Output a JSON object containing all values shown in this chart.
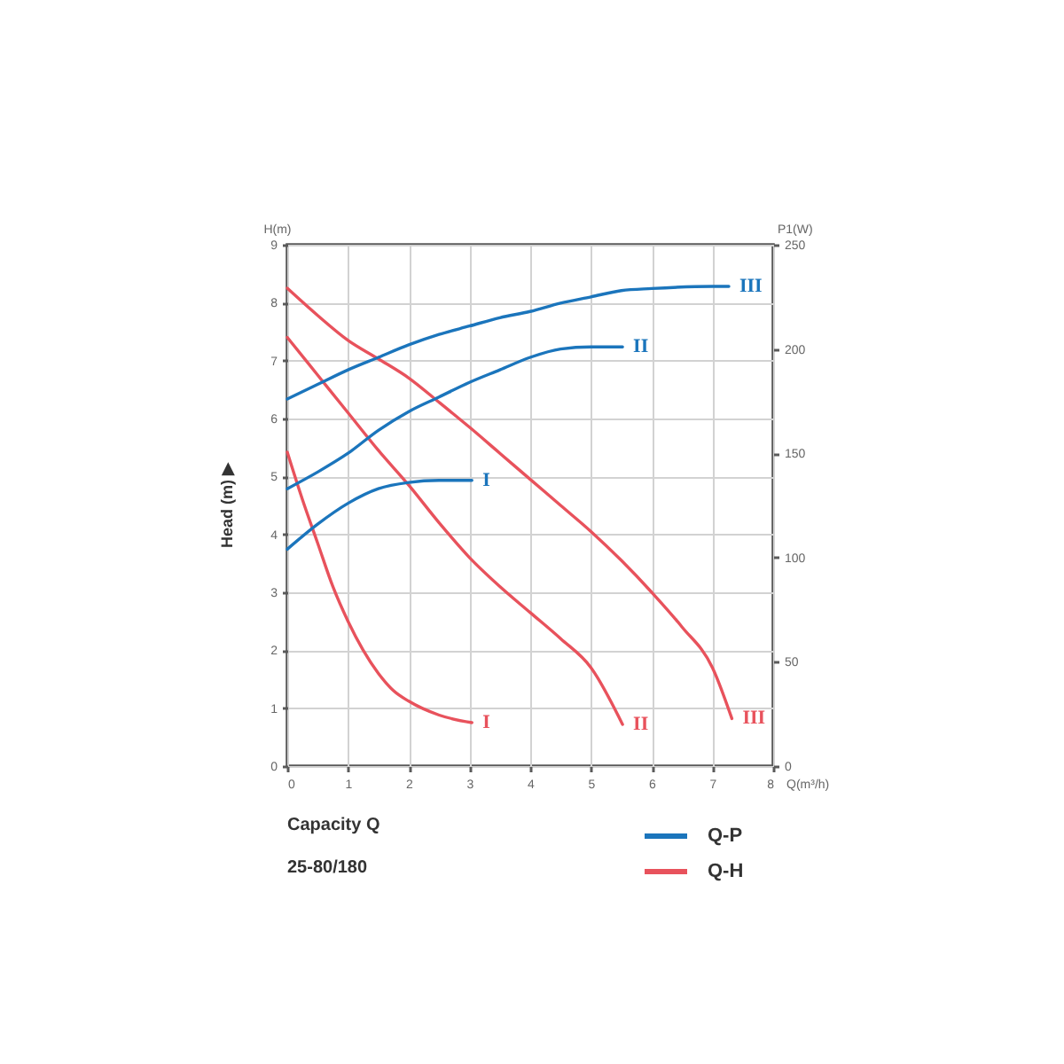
{
  "chart_data": {
    "type": "line",
    "xlabel": "Q(m³/h)",
    "ylabel": "H(m)",
    "y2label": "P1(W)",
    "xlim": [
      0,
      8
    ],
    "xticks": [
      0,
      1,
      2,
      3,
      4,
      5,
      6,
      7,
      8
    ],
    "ylim": [
      0,
      9
    ],
    "yticks": [
      0,
      1,
      2,
      3,
      4,
      5,
      6,
      7,
      8,
      9
    ],
    "y2lim": [
      0,
      250
    ],
    "y2ticks": [
      0,
      50,
      100,
      150,
      200,
      250
    ],
    "grid": true,
    "legend": "bottom right",
    "line_style": "solid",
    "series": [
      {
        "name": "Q-P",
        "color": "#1b75bc",
        "axis": "y2",
        "x": [
          0,
          0.5,
          1,
          1.5,
          2,
          2.5,
          3.04
        ],
        "values": [
          104,
          116,
          126,
          133,
          136,
          137,
          137
        ]
      },
      {
        "color": "#1b75bc",
        "axis": "y2",
        "x": [
          0,
          0.5,
          1,
          1.5,
          2,
          2.5,
          3,
          3.5,
          4,
          4.5,
          5,
          5.52
        ],
        "values": [
          133,
          141,
          150,
          161,
          170,
          177,
          184,
          190,
          196,
          200,
          201,
          201
        ]
      },
      {
        "color": "#1b75bc",
        "axis": "y2",
        "x": [
          0,
          0.5,
          1,
          1.5,
          2,
          2.5,
          3,
          3.5,
          4,
          4.5,
          5,
          5.5,
          6,
          7,
          7.27
        ],
        "values": [
          176,
          183,
          190,
          196,
          202,
          207,
          211,
          215,
          218,
          222,
          225,
          228,
          229,
          230,
          230
        ]
      },
      {
        "name": "Q-H",
        "color": "#e8525c",
        "x": [
          0,
          0.25,
          0.5,
          0.75,
          1,
          1.25,
          1.5,
          1.75,
          2,
          2.5,
          3.04
        ],
        "values": [
          5.42,
          4.6,
          3.85,
          3.1,
          2.5,
          2.0,
          1.6,
          1.3,
          1.12,
          0.88,
          0.75
        ]
      },
      {
        "color": "#e8525c",
        "x": [
          0,
          0.5,
          1,
          1.5,
          2,
          2.5,
          3,
          3.5,
          4,
          4.5,
          5,
          5.52
        ],
        "values": [
          7.4,
          6.75,
          6.1,
          5.45,
          4.85,
          4.2,
          3.6,
          3.1,
          2.65,
          2.2,
          1.7,
          0.72
        ]
      },
      {
        "color": "#e8525c",
        "x": [
          0,
          0.5,
          1,
          1.5,
          2,
          2.5,
          3,
          3.5,
          4,
          4.5,
          5,
          5.5,
          6,
          6.5,
          7,
          7.32
        ],
        "values": [
          8.25,
          7.78,
          7.35,
          7.03,
          6.7,
          6.28,
          5.85,
          5.4,
          4.95,
          4.5,
          4.05,
          3.55,
          3.0,
          2.4,
          1.7,
          0.82
        ]
      }
    ],
    "annotations": [
      "Head (m) ▶",
      "Capacity Q",
      "25-80/180",
      "I",
      "II",
      "III",
      "I",
      "II",
      "III"
    ]
  }
}
